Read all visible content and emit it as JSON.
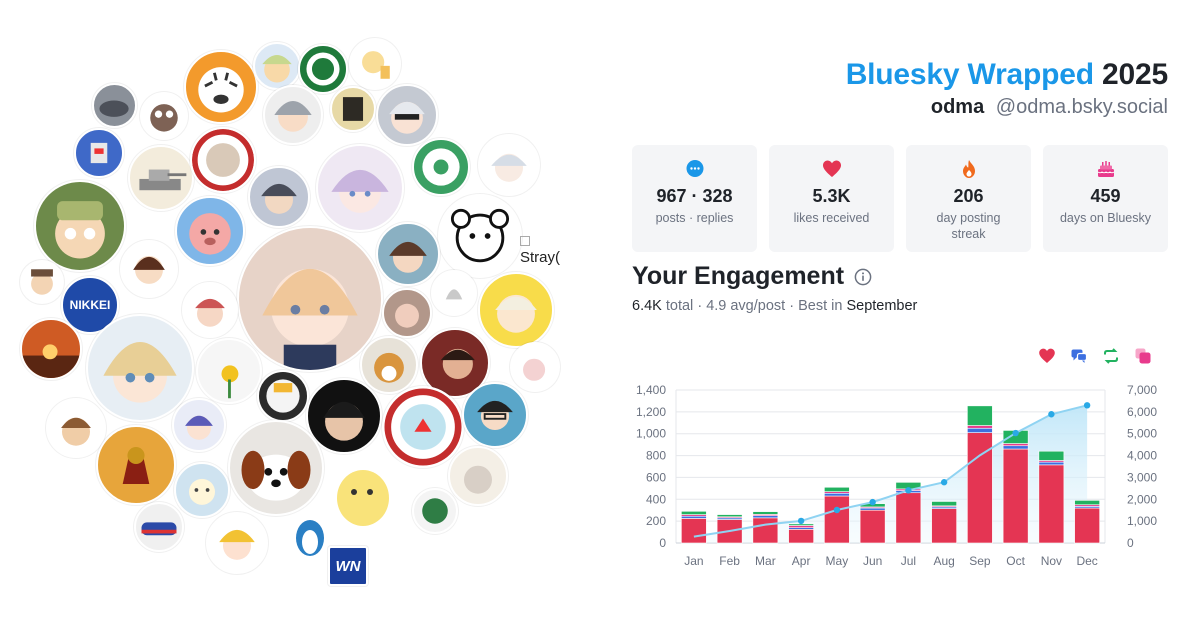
{
  "header": {
    "brand": "Bluesky Wrapped",
    "year": "2025",
    "display_name": "odma",
    "handle": "@odma.bsky.social"
  },
  "stats": [
    {
      "icon": "speech-bubble-icon",
      "value": "967 · 328",
      "label": "posts · replies"
    },
    {
      "icon": "heart-icon",
      "value": "5.3K",
      "label": "likes received"
    },
    {
      "icon": "fire-icon",
      "value": "206",
      "label": "day posting streak"
    },
    {
      "icon": "cake-icon",
      "value": "459",
      "label": "days on Bluesky"
    }
  ],
  "engagement": {
    "title": "Your Engagement",
    "total": "6.4K",
    "total_label": "total",
    "avg": "4.9 avg/post",
    "best_label": "Best in",
    "best_month": "September"
  },
  "avatar_cloud": {
    "text_label": "Stray(",
    "badge_nikkei": "NIKKEI",
    "badge_wn": "WN"
  },
  "colors": {
    "likes": "#e43553",
    "replies": "#3c6fe0",
    "reposts": "#22b260",
    "quotes": "#e83a8c",
    "cumulative": "#8fd3f2",
    "brand": "#1a97e8"
  },
  "chart_data": {
    "type": "bar",
    "categories": [
      "Jan",
      "Feb",
      "Mar",
      "Apr",
      "May",
      "Jun",
      "Jul",
      "Aug",
      "Sep",
      "Oct",
      "Nov",
      "Dec"
    ],
    "series": [
      {
        "values": [
          225,
          215,
          230,
          125,
          430,
          300,
          460,
          315,
          1010,
          860,
          715,
          320
        ]
      },
      {
        "values": [
          20,
          15,
          20,
          15,
          25,
          20,
          20,
          15,
          40,
          30,
          25,
          15
        ]
      },
      {
        "values": [
          15,
          10,
          12,
          20,
          15,
          10,
          15,
          10,
          25,
          20,
          15,
          15
        ]
      },
      {
        "values": [
          30,
          20,
          25,
          15,
          40,
          30,
          60,
          40,
          180,
          120,
          85,
          40
        ]
      },
      {
        "type": "area",
        "axis": "right",
        "values": [
          290,
          550,
          840,
          1010,
          1510,
          1870,
          2410,
          2780,
          4010,
          5030,
          5890,
          6300
        ]
      }
    ],
    "ylim": [
      0,
      1400
    ],
    "yticks": [
      "0",
      "200",
      "400",
      "600",
      "800",
      "1,000",
      "1,200",
      "1,400"
    ],
    "y2lim": [
      0,
      7000
    ],
    "y2ticks": [
      "0",
      "1,000",
      "2,000",
      "3,000",
      "4,000",
      "5,000",
      "6,000",
      "7,000"
    ],
    "grid": true,
    "legend": "top-right"
  }
}
